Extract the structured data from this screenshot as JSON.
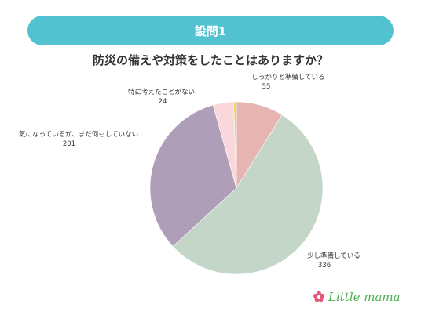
{
  "header": {
    "label": "設問1"
  },
  "question": "防災の備えや対策をしたことはありますか？",
  "chart_data": {
    "type": "pie",
    "slices": [
      {
        "label": "しっかりと準備している",
        "value": 55,
        "color": "#e6b5b2"
      },
      {
        "label": "少し準備している",
        "value": 336,
        "color": "#c3d6c8"
      },
      {
        "label": "気になっているが、まだ何もしていない",
        "value": 201,
        "color": "#ae9eb7"
      },
      {
        "label": "特に考えたことがない",
        "value": 24,
        "color": "#fad7da"
      },
      {
        "label": "",
        "value": 3,
        "color": "#e9d44a"
      }
    ]
  },
  "brand": {
    "name": "Little mama",
    "flower_color": "#e35a7c",
    "text_color": "#4caf50"
  }
}
